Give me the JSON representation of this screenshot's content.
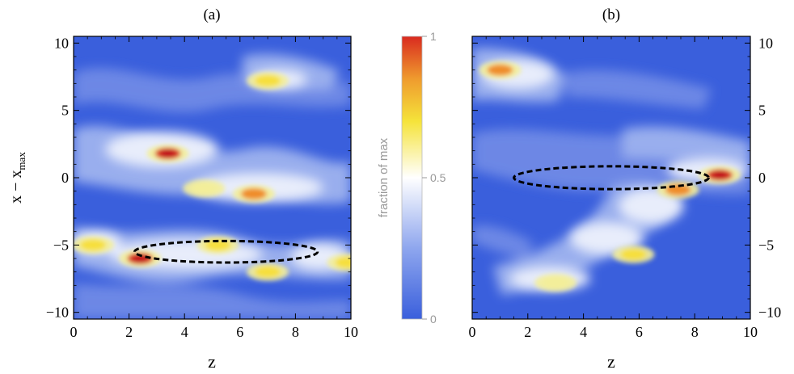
{
  "figure": {
    "colorbar": {
      "label": "fraction of max",
      "ticks": [
        {
          "value": 0,
          "label": "0"
        },
        {
          "value": 0.5,
          "label": "0.5"
        },
        {
          "value": 1,
          "label": "1"
        }
      ]
    }
  },
  "chart_data": [
    {
      "type": "heatmap",
      "title": "(a)",
      "xlabel": "z",
      "ylabel": "x − x",
      "ylabel_sub": "max",
      "xlim": [
        0,
        10
      ],
      "ylim": [
        -10.5,
        10.5
      ],
      "xticks": [
        0,
        2,
        4,
        6,
        8,
        10
      ],
      "yticks": [
        -10,
        -5,
        0,
        5,
        10
      ],
      "xtick_labels": [
        "0",
        "2",
        "4",
        "6",
        "8",
        "10"
      ],
      "ytick_labels": [
        "−10",
        "−5",
        "0",
        "5",
        "10"
      ],
      "y_axis_side": "left",
      "colormap": {
        "low": "#3a5fdc",
        "mid": "#ffffff",
        "high": "#d92a1f",
        "scale": "fraction of max (0 to 1)"
      },
      "hot_spots": [
        {
          "x": 3.4,
          "y": 1.8,
          "value": 1.0
        },
        {
          "x": 2.4,
          "y": -6.0,
          "value": 1.0
        },
        {
          "x": 6.5,
          "y": -1.2,
          "value": 0.8
        },
        {
          "x": 7.0,
          "y": 7.2,
          "value": 0.75
        },
        {
          "x": 0.7,
          "y": -5.0,
          "value": 0.7
        },
        {
          "x": 9.9,
          "y": -6.3,
          "value": 0.75
        },
        {
          "x": 5.2,
          "y": -5.0,
          "value": 0.7
        },
        {
          "x": 7.0,
          "y": -7.0,
          "value": 0.7
        },
        {
          "x": 4.7,
          "y": -0.8,
          "value": 0.6
        }
      ],
      "dashed_ellipse": {
        "cx": 5.5,
        "cy": -5.5,
        "half_width": 3.3,
        "half_height": 0.8
      }
    },
    {
      "type": "heatmap",
      "title": "(b)",
      "xlabel": "z",
      "ylabel": "",
      "xlim": [
        0,
        10
      ],
      "ylim": [
        -10.5,
        10.5
      ],
      "xticks": [
        0,
        2,
        4,
        6,
        8,
        10
      ],
      "yticks": [
        -10,
        -5,
        0,
        5,
        10
      ],
      "xtick_labels": [
        "0",
        "2",
        "4",
        "6",
        "8",
        "10"
      ],
      "ytick_labels": [
        "−10",
        "−5",
        "0",
        "5",
        "10"
      ],
      "y_axis_side": "right",
      "colormap": {
        "low": "#3a5fdc",
        "mid": "#ffffff",
        "high": "#d92a1f",
        "scale": "fraction of max (0 to 1)"
      },
      "hot_spots": [
        {
          "x": 8.9,
          "y": 0.2,
          "value": 1.0
        },
        {
          "x": 7.4,
          "y": -0.9,
          "value": 0.9
        },
        {
          "x": 1.0,
          "y": 8.0,
          "value": 0.8
        },
        {
          "x": 5.8,
          "y": -5.7,
          "value": 0.65
        },
        {
          "x": 3.0,
          "y": -7.8,
          "value": 0.6
        }
      ],
      "dashed_ellipse": {
        "cx": 5.0,
        "cy": 0.0,
        "half_width": 3.5,
        "half_height": 0.85
      }
    }
  ]
}
